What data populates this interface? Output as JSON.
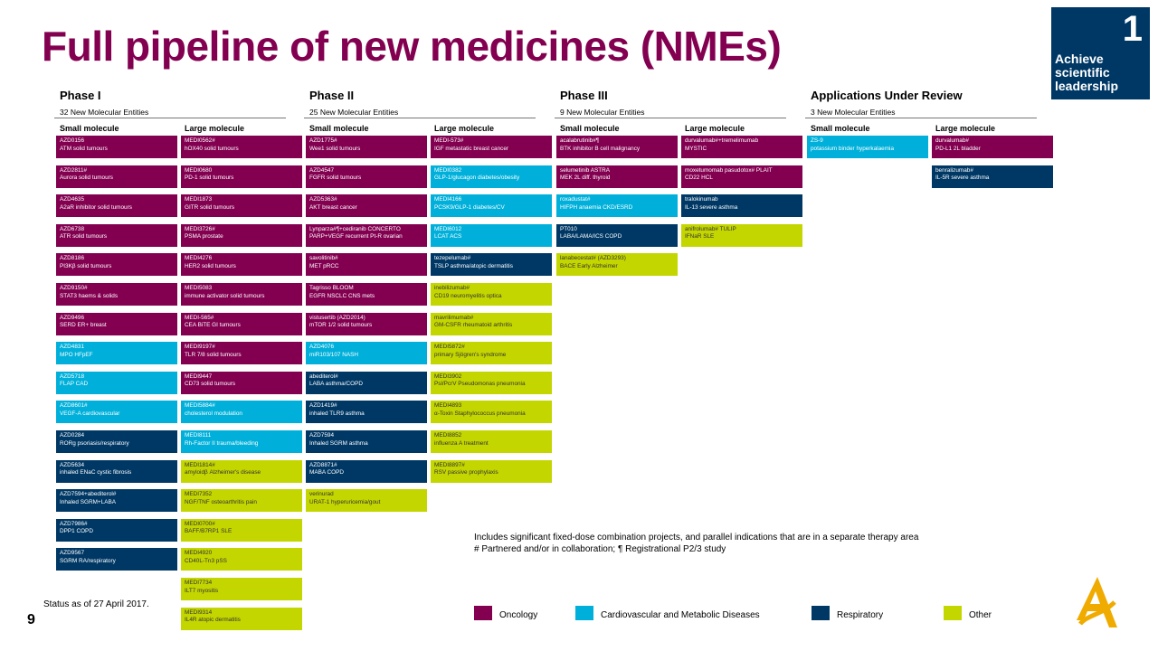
{
  "title": "Full pipeline of new medicines (NMEs)",
  "corner": {
    "number": "1",
    "line1": "Achieve",
    "line2": "scientific",
    "line3": "leadership"
  },
  "colors": {
    "oncology": "#830051",
    "cvmd": "#00b0da",
    "respiratory": "#003865",
    "other": "#c4d600"
  },
  "sub_headers": {
    "small": "Small molecule",
    "large": "Large molecule"
  },
  "phases": [
    {
      "title": "Phase I",
      "count": "32 New Molecular Entities",
      "small": [
        {
          "name": "AZD0156",
          "ind": "ATM solid tumours",
          "cat": "onc"
        },
        {
          "name": "AZD2811#",
          "ind": "Aurora solid tumours",
          "cat": "onc"
        },
        {
          "name": "AZD4635",
          "ind": "A2aR inhibitor solid tumours",
          "cat": "onc"
        },
        {
          "name": "AZD6738",
          "ind": "ATR solid tumours",
          "cat": "onc"
        },
        {
          "name": "AZD8186",
          "ind": "PI3Kβ solid tumours",
          "cat": "onc"
        },
        {
          "name": "AZD9150#",
          "ind": "STAT3 haems & solids",
          "cat": "onc"
        },
        {
          "name": "AZD9496",
          "ind": "SERD ER+ breast",
          "cat": "onc"
        },
        {
          "name": "AZD4831",
          "ind": "MPO HFpEF",
          "cat": "cvm"
        },
        {
          "name": "AZD5718",
          "ind": "FLAP CAD",
          "cat": "cvm"
        },
        {
          "name": "AZD8601#",
          "ind": "VEGF-A cardiovascular",
          "cat": "cvm"
        },
        {
          "name": "AZD0284",
          "ind": "RORg psoriasis/respiratory",
          "cat": "resp"
        },
        {
          "name": "AZD5634",
          "ind": "inhaled ENaC cystic fibrosis",
          "cat": "resp"
        },
        {
          "name": "AZD7594+abediterol#",
          "ind": "Inhaled SGRM+LABA",
          "cat": "resp"
        },
        {
          "name": "AZD7986#",
          "ind": "DPP1 COPD",
          "cat": "resp"
        },
        {
          "name": "AZD9567",
          "ind": "SGRM RA/respiratory",
          "cat": "resp"
        }
      ],
      "large": [
        {
          "name": "MEDI0562#",
          "ind": "hOX40 solid tumours",
          "cat": "onc"
        },
        {
          "name": "MEDI0680",
          "ind": "PD-1 solid tumours",
          "cat": "onc"
        },
        {
          "name": "MEDI1873",
          "ind": "GITR solid tumours",
          "cat": "onc"
        },
        {
          "name": "MEDI3726#",
          "ind": "PSMA prostate",
          "cat": "onc"
        },
        {
          "name": "MEDI4276",
          "ind": "HER2 solid tumours",
          "cat": "onc"
        },
        {
          "name": "MEDI5083",
          "ind": "immune activator solid tumours",
          "cat": "onc"
        },
        {
          "name": "MEDI-565#",
          "ind": "CEA BiTE  GI tumours",
          "cat": "onc"
        },
        {
          "name": "MEDI9197#",
          "ind": "TLR 7/8 solid tumours",
          "cat": "onc"
        },
        {
          "name": "MEDI9447",
          "ind": "CD73 solid tumours",
          "cat": "onc"
        },
        {
          "name": "MEDI5884#",
          "ind": "cholesterol modulation",
          "cat": "cvm"
        },
        {
          "name": "MEDI8111",
          "ind": "Rh-Factor II  trauma/bleeding",
          "cat": "cvm"
        },
        {
          "name": "MEDI1814#",
          "ind": "amyloidβ Alzheimer's disease",
          "cat": "oth"
        },
        {
          "name": "MEDI7352",
          "ind": "NGF/TNF osteoarthritis pain",
          "cat": "oth"
        },
        {
          "name": "MEDI0700#",
          "ind": "BAFF/B7RP1 SLE",
          "cat": "oth"
        },
        {
          "name": "MEDI4920",
          "ind": "CD40L-Tn3  pSS",
          "cat": "oth"
        },
        {
          "name": "MEDI7734",
          "ind": "ILT7 myositis",
          "cat": "oth"
        },
        {
          "name": "MEDI9314",
          "ind": "IL4R atopic dermatitis",
          "cat": "oth"
        }
      ]
    },
    {
      "title": "Phase II",
      "count": "25 New Molecular Entities",
      "small": [
        {
          "name": "AZD1775#",
          "ind": "Wee1 solid tumours",
          "cat": "onc"
        },
        {
          "name": "AZD4547",
          "ind": "FGFR solid tumours",
          "cat": "onc"
        },
        {
          "name": "AZD5363#",
          "ind": "AKT breast cancer",
          "cat": "onc"
        },
        {
          "name": "Lynparza#¶+cediranib  CONCERTO",
          "ind": "PARP+VEGF recurrent Pt-R ovarian",
          "cat": "onc"
        },
        {
          "name": "savolitinib#",
          "ind": "MET pRCC",
          "cat": "onc"
        },
        {
          "name": "Tagrisso BLOOM",
          "ind": "EGFR NSCLC CNS mets",
          "cat": "onc"
        },
        {
          "name": "vistusertib (AZD2014)",
          "ind": "mTOR 1/2 solid tumours",
          "cat": "onc"
        },
        {
          "name": "AZD4076",
          "ind": "miR103/107  NASH",
          "cat": "cvm"
        },
        {
          "name": "abediterol#",
          "ind": "LABA asthma/COPD",
          "cat": "resp"
        },
        {
          "name": "AZD1419#",
          "ind": "inhaled TLR9 asthma",
          "cat": "resp"
        },
        {
          "name": "AZD7594",
          "ind": "Inhaled SGRM asthma",
          "cat": "resp"
        },
        {
          "name": "AZD8871#",
          "ind": "MABA COPD",
          "cat": "resp"
        },
        {
          "name": "verinurad",
          "ind": "URAT-1 hyperuricemia/gout",
          "cat": "oth"
        }
      ],
      "large": [
        {
          "name": "MEDI-573#",
          "ind": "IGF metastatic breast cancer",
          "cat": "onc"
        },
        {
          "name": "MEDI0382",
          "ind": "GLP-1/glucagon diabetes/obesity",
          "cat": "cvm"
        },
        {
          "name": "MEDI4166",
          "ind": "PCSK9/GLP-1 diabetes/CV",
          "cat": "cvm"
        },
        {
          "name": "MEDI6012",
          "ind": "LCAT ACS",
          "cat": "cvm"
        },
        {
          "name": "tezepelumab#",
          "ind": "TSLP asthma/atopic dermatitis",
          "cat": "resp"
        },
        {
          "name": "inebilizumab#",
          "ind": "CD19 neuromyelitis optica",
          "cat": "oth"
        },
        {
          "name": "mavrilimumab#",
          "ind": "GM-CSFR rheumatoid arthritis",
          "cat": "oth"
        },
        {
          "name": "MEDI5872#",
          "ind": "primary Sjögren's syndrome",
          "cat": "oth"
        },
        {
          "name": "MEDI3902",
          "ind": "Psl/PcrV Pseudomonas pneumonia",
          "cat": "oth"
        },
        {
          "name": "MEDI4893",
          "ind": "α-Toxin Staphylococcus pneumonia",
          "cat": "oth"
        },
        {
          "name": "MEDI8852",
          "ind": "influenza A treatment",
          "cat": "oth"
        },
        {
          "name": "MEDI8897#",
          "ind": "RSV passive prophylaxis",
          "cat": "oth"
        }
      ]
    },
    {
      "title": "Phase III",
      "count": "9 New Molecular Entities",
      "small": [
        {
          "name": "acalabrutinib#¶",
          "ind": "BTK inhibitor B cell malignancy",
          "cat": "onc"
        },
        {
          "name": "selumetinib ASTRA",
          "ind": "MEK 2L diff. thyroid",
          "cat": "onc"
        },
        {
          "name": "roxadustat#",
          "ind": "HIFPH anaemia CKD/ESRD",
          "cat": "cvm"
        },
        {
          "name": "PT010",
          "ind": "LABA/LAMA/ICS COPD",
          "cat": "resp"
        },
        {
          "name": "lanabecestat# (AZD3293)",
          "ind": "BACE Early Alzheimer",
          "cat": "oth"
        }
      ],
      "large": [
        {
          "name": "durvalumab#+tremelimumab",
          "ind": "MYSTIC",
          "cat": "onc"
        },
        {
          "name": "moxetumomab pasudotox# PLAIT",
          "ind": "CD22 HCL",
          "cat": "onc"
        },
        {
          "name": "tralokinumab",
          "ind": "IL-13 severe asthma",
          "cat": "resp"
        },
        {
          "name": "anifrolumab# TULIP",
          "ind": "IFNaR SLE",
          "cat": "oth"
        }
      ]
    },
    {
      "title": "Applications Under Review",
      "count": "3 New Molecular Entities",
      "small": [
        {
          "name": "ZS-9",
          "ind": "potassium binder hyperkalaemia",
          "cat": "cvm"
        }
      ],
      "large": [
        {
          "name": "durvalumab#",
          "ind": "PD-L1 2L bladder",
          "cat": "onc"
        },
        {
          "name": "benralizumab#",
          "ind": "IL-5R severe asthma",
          "cat": "resp"
        }
      ]
    }
  ],
  "footnote": {
    "line1": "Includes significant fixed-dose combination projects, and parallel indications that are in a separate therapy area",
    "line2": "# Partnered and/or in collaboration; ¶ Registrational P2/3 study"
  },
  "status": "Status as of 27 April 2017.",
  "page_number": "9",
  "legend": [
    {
      "label": "Oncology",
      "cat": "onc"
    },
    {
      "label": "Cardiovascular and Metabolic Diseases",
      "cat": "cvm"
    },
    {
      "label": "Respiratory",
      "cat": "resp"
    },
    {
      "label": "Other",
      "cat": "oth"
    }
  ]
}
